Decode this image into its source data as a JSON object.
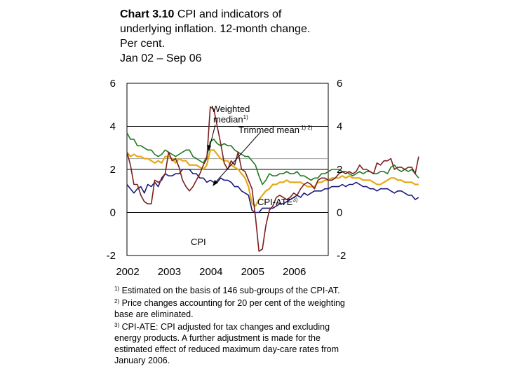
{
  "title": {
    "number": "Chart 3.10",
    "line1_rest": " CPI and indicators of",
    "line2": "underlying inflation. 12-month change.",
    "line3": "Per cent.",
    "line4": "Jan 02 – Sep 06"
  },
  "chart_data": {
    "type": "line",
    "title": "Chart 3.10 CPI and indicators of underlying inflation. 12-month change. Per cent. Jan 02 – Sep 06",
    "x_start": 2002.0,
    "x_step": 0.0833333,
    "x_ticks": [
      2002,
      2003,
      2004,
      2005,
      2006
    ],
    "x_tick_labels": [
      "2002",
      "2003",
      "2004",
      "2005",
      "2006"
    ],
    "xlim": [
      2002.0,
      2006.83
    ],
    "ylim": [
      -2,
      6
    ],
    "y_ticks": [
      -2,
      0,
      2,
      4,
      6
    ],
    "y_tick_labels_left": [
      "-2",
      "0",
      "2",
      "4",
      "6"
    ],
    "y_tick_labels_right": [
      "-2",
      "0",
      "2",
      "4",
      "6"
    ],
    "reference_line": 2.5,
    "series": [
      {
        "name": "CPI",
        "color": "#7a1f1f",
        "values": [
          2.8,
          2.2,
          1.3,
          1.3,
          0.8,
          0.5,
          0.4,
          0.4,
          1.5,
          1.4,
          1.5,
          1.8,
          2.8,
          2.4,
          2.5,
          2.1,
          1.5,
          1.2,
          1.0,
          1.2,
          1.5,
          1.8,
          2.2,
          2.5,
          4.9,
          4.8,
          4.0,
          3.2,
          2.3,
          2.0,
          2.4,
          2.2,
          2.8,
          2.0,
          1.9,
          1.5,
          1.1,
          -0.2,
          -1.8,
          -1.7,
          -0.6,
          0.1,
          0.3,
          0.7,
          0.8,
          0.7,
          0.6,
          0.7,
          0.9,
          0.8,
          1.1,
          1.3,
          1.4,
          1.3,
          1.1,
          1.5,
          1.6,
          1.6,
          1.5,
          1.5,
          1.6,
          1.8,
          1.9,
          1.8,
          1.9,
          1.8,
          1.9,
          2.2,
          2.0,
          2.0,
          1.9,
          1.8,
          2.3,
          2.2,
          2.4,
          2.4,
          2.5,
          2.0,
          2.1,
          2.1,
          2.0,
          2.1,
          2.1,
          1.8,
          2.6
        ]
      },
      {
        "name": "Weighted median",
        "sup": "1)",
        "color": "#1f7a1f",
        "values": [
          3.7,
          3.4,
          3.4,
          3.1,
          3.1,
          3.0,
          2.9,
          2.9,
          2.7,
          2.6,
          2.7,
          2.9,
          2.8,
          2.7,
          2.6,
          2.7,
          2.8,
          2.9,
          2.9,
          2.6,
          2.5,
          2.4,
          2.3,
          2.6,
          3.3,
          3.4,
          3.2,
          3.1,
          3.2,
          3.1,
          3.1,
          2.9,
          2.8,
          2.7,
          2.6,
          2.6,
          2.4,
          2.2,
          1.7,
          1.3,
          1.5,
          1.8,
          1.7,
          1.7,
          1.8,
          1.8,
          1.9,
          1.8,
          1.8,
          1.9,
          1.7,
          1.7,
          1.6,
          1.5,
          1.6,
          1.6,
          1.8,
          1.8,
          1.9,
          2.0,
          2.0,
          2.0,
          1.9,
          1.9,
          1.8,
          1.7,
          1.8,
          1.9,
          1.8,
          1.9,
          1.9,
          1.8,
          1.8,
          1.9,
          1.9,
          1.8,
          2.1,
          2.2,
          2.0,
          1.9,
          2.0,
          1.9,
          2.0,
          1.8,
          1.6
        ]
      },
      {
        "name": "Trimmed mean",
        "sup": "1) 2)",
        "color": "#e6a817",
        "values": [
          2.8,
          2.6,
          2.7,
          2.6,
          2.6,
          2.5,
          2.5,
          2.4,
          2.3,
          2.4,
          2.3,
          2.6,
          2.6,
          2.5,
          2.3,
          2.5,
          2.4,
          2.4,
          2.2,
          2.2,
          2.2,
          2.1,
          2.0,
          2.2,
          2.9,
          2.9,
          2.7,
          2.5,
          2.4,
          2.4,
          2.2,
          2.1,
          2.0,
          1.8,
          1.6,
          1.2,
          0.4,
          0.3,
          0.6,
          0.8,
          1.0,
          1.1,
          1.3,
          1.3,
          1.4,
          1.4,
          1.5,
          1.4,
          1.4,
          1.4,
          1.4,
          1.3,
          1.2,
          1.2,
          1.2,
          1.4,
          1.4,
          1.5,
          1.5,
          1.6,
          1.6,
          1.6,
          1.7,
          1.6,
          1.7,
          1.6,
          1.6,
          1.6,
          1.5,
          1.5,
          1.5,
          1.4,
          1.3,
          1.3,
          1.4,
          1.5,
          1.6,
          1.6,
          1.5,
          1.5,
          1.4,
          1.4,
          1.4,
          1.3,
          1.3
        ]
      },
      {
        "name": "CPI-ATE",
        "sup": "3)",
        "color": "#1a1a7a",
        "values": [
          1.3,
          1.1,
          0.9,
          1.1,
          1.2,
          0.9,
          1.3,
          1.2,
          1.4,
          1.2,
          1.6,
          1.8,
          1.7,
          1.7,
          1.8,
          1.8,
          2.0,
          2.0,
          2.0,
          1.8,
          1.8,
          1.6,
          1.6,
          1.4,
          1.5,
          1.4,
          1.4,
          1.6,
          1.5,
          1.5,
          1.4,
          1.2,
          1.2,
          1.0,
          0.9,
          0.8,
          0.1,
          0.0,
          0.0,
          0.2,
          0.2,
          0.2,
          0.2,
          0.3,
          0.4,
          0.4,
          0.5,
          0.6,
          0.7,
          0.8,
          0.7,
          0.9,
          0.8,
          0.9,
          1.0,
          1.0,
          1.0,
          1.1,
          1.1,
          1.2,
          1.2,
          1.2,
          1.3,
          1.2,
          1.3,
          1.3,
          1.4,
          1.3,
          1.2,
          1.2,
          1.1,
          1.1,
          1.0,
          1.1,
          1.1,
          1.1,
          1.0,
          0.9,
          1.0,
          1.0,
          0.9,
          0.8,
          0.8,
          0.6,
          0.7
        ]
      }
    ],
    "annotations": [
      {
        "text": "Weighted",
        "series": "Weighted median"
      },
      {
        "text": "median",
        "sup": "1)",
        "series": "Weighted median"
      },
      {
        "text": "Trimmed mean",
        "sup": "1) 2)",
        "series": "Trimmed mean"
      },
      {
        "text": "CPI-ATE",
        "sup": "3)",
        "series": "CPI-ATE"
      },
      {
        "text": "CPI",
        "series": "CPI"
      }
    ]
  },
  "footnotes": [
    {
      "mark": "1)",
      "text": "Estimated on the basis of 146 sub-groups of the CPI-AT."
    },
    {
      "mark": "2)",
      "text": "Price changes accounting for 20 per cent of the weighting base are eliminated."
    },
    {
      "mark": "3)",
      "text": "CPI-ATE: CPI adjusted for tax changes and excluding energy products. A further adjustment is made for the estimated effect of reduced maximum day-care rates from January 2006."
    }
  ]
}
